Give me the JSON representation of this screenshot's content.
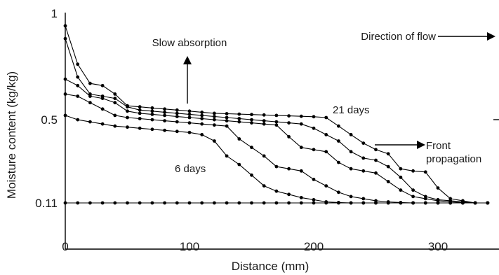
{
  "chart_data": {
    "type": "line",
    "xlabel": "Distance (mm)",
    "ylabel": "Moisture content (kg/kg)",
    "xlim": [
      0,
      345
    ],
    "ylim": [
      0.05,
      1.0
    ],
    "x_ticks": [
      {
        "value": 0,
        "label": "0"
      },
      {
        "value": 100,
        "label": "100"
      },
      {
        "value": 200,
        "label": "200"
      },
      {
        "value": 300,
        "label": "300"
      }
    ],
    "y_ticks": [
      {
        "value": 0.11,
        "label": "0.11"
      },
      {
        "value": 0.5,
        "label": "0.5"
      },
      {
        "value": 1.0,
        "label": "1"
      }
    ],
    "grid": false,
    "series": [
      {
        "x": [
          0,
          10,
          20,
          30,
          40,
          50,
          60,
          70,
          80,
          90,
          100,
          110,
          120,
          130,
          140,
          150,
          160,
          170,
          180,
          190,
          200,
          210,
          220,
          230,
          240,
          250,
          260,
          270,
          280,
          290,
          300,
          310,
          320,
          330,
          340
        ],
        "values": [
          0.11,
          0.11,
          0.11,
          0.11,
          0.11,
          0.11,
          0.11,
          0.11,
          0.11,
          0.11,
          0.11,
          0.11,
          0.11,
          0.11,
          0.11,
          0.11,
          0.11,
          0.11,
          0.11,
          0.11,
          0.11,
          0.11,
          0.11,
          0.11,
          0.11,
          0.11,
          0.11,
          0.11,
          0.11,
          0.11,
          0.11,
          0.11,
          0.11,
          0.11,
          0.11
        ]
      },
      {
        "x": [
          0,
          10,
          20,
          30,
          40,
          50,
          60,
          70,
          80,
          90,
          100,
          110,
          120,
          130,
          140,
          150,
          160,
          170,
          180,
          190,
          200,
          210,
          220,
          230,
          240,
          250,
          260,
          270,
          280,
          290,
          300,
          310,
          320,
          330,
          340
        ],
        "values": [
          0.52,
          0.5,
          0.49,
          0.48,
          0.47,
          0.465,
          0.46,
          0.455,
          0.45,
          0.445,
          0.44,
          0.43,
          0.4,
          0.33,
          0.29,
          0.24,
          0.19,
          0.165,
          0.15,
          0.135,
          0.125,
          0.115,
          0.112,
          0.11,
          0.11,
          0.11,
          0.11,
          0.11,
          0.11,
          0.11,
          0.11,
          0.11,
          0.11,
          0.11,
          0.11
        ]
      },
      {
        "x": [
          0,
          10,
          20,
          30,
          40,
          50,
          60,
          70,
          80,
          90,
          100,
          110,
          120,
          130,
          140,
          150,
          160,
          170,
          180,
          190,
          200,
          210,
          220,
          230,
          240,
          250,
          260,
          270,
          280,
          290,
          300,
          310,
          320,
          330,
          340
        ],
        "values": [
          0.62,
          0.61,
          0.58,
          0.55,
          0.52,
          0.51,
          0.505,
          0.5,
          0.495,
          0.49,
          0.485,
          0.48,
          0.475,
          0.47,
          0.41,
          0.37,
          0.33,
          0.28,
          0.27,
          0.26,
          0.22,
          0.19,
          0.16,
          0.14,
          0.13,
          0.12,
          0.115,
          0.112,
          0.11,
          0.11,
          0.11,
          0.11,
          0.11,
          0.11,
          0.11
        ]
      },
      {
        "x": [
          0,
          10,
          20,
          30,
          40,
          50,
          60,
          70,
          80,
          90,
          100,
          110,
          120,
          130,
          140,
          150,
          160,
          170,
          180,
          190,
          200,
          210,
          220,
          230,
          240,
          250,
          260,
          270,
          280,
          290,
          300,
          310,
          320,
          330,
          340
        ],
        "values": [
          0.69,
          0.66,
          0.61,
          0.6,
          0.58,
          0.54,
          0.53,
          0.525,
          0.52,
          0.515,
          0.51,
          0.505,
          0.5,
          0.495,
          0.49,
          0.485,
          0.48,
          0.475,
          0.42,
          0.37,
          0.36,
          0.35,
          0.3,
          0.27,
          0.26,
          0.25,
          0.21,
          0.17,
          0.14,
          0.13,
          0.12,
          0.115,
          0.112,
          0.11,
          0.11
        ]
      },
      {
        "x": [
          0,
          10,
          20,
          30,
          40,
          50,
          60,
          70,
          80,
          90,
          100,
          110,
          120,
          130,
          140,
          150,
          160,
          170,
          180,
          190,
          200,
          210,
          220,
          230,
          240,
          250,
          260,
          270,
          280,
          290,
          300,
          310,
          320,
          330,
          340
        ],
        "values": [
          0.88,
          0.7,
          0.62,
          0.61,
          0.6,
          0.56,
          0.545,
          0.54,
          0.535,
          0.53,
          0.525,
          0.52,
          0.515,
          0.51,
          0.505,
          0.5,
          0.495,
          0.49,
          0.485,
          0.48,
          0.46,
          0.43,
          0.4,
          0.35,
          0.32,
          0.31,
          0.28,
          0.23,
          0.17,
          0.14,
          0.125,
          0.12,
          0.115,
          0.11,
          0.11
        ]
      },
      {
        "x": [
          0,
          10,
          20,
          30,
          40,
          50,
          60,
          70,
          80,
          90,
          100,
          110,
          120,
          130,
          140,
          150,
          160,
          170,
          180,
          190,
          200,
          210,
          220,
          230,
          240,
          250,
          260,
          270,
          280,
          290,
          300,
          310,
          320,
          330,
          340
        ],
        "values": [
          0.94,
          0.76,
          0.67,
          0.66,
          0.62,
          0.565,
          0.56,
          0.555,
          0.55,
          0.545,
          0.54,
          0.535,
          0.53,
          0.528,
          0.526,
          0.524,
          0.522,
          0.52,
          0.518,
          0.516,
          0.514,
          0.51,
          0.47,
          0.43,
          0.39,
          0.36,
          0.34,
          0.27,
          0.26,
          0.255,
          0.18,
          0.13,
          0.12,
          0.11,
          0.11
        ]
      }
    ],
    "annotations": {
      "slow_absorption": "Slow absorption",
      "direction_of_flow": "Direction of flow",
      "days_21": "21 days",
      "days_6": "6 days",
      "front_line1": "Front",
      "front_line2": "propagation"
    }
  }
}
